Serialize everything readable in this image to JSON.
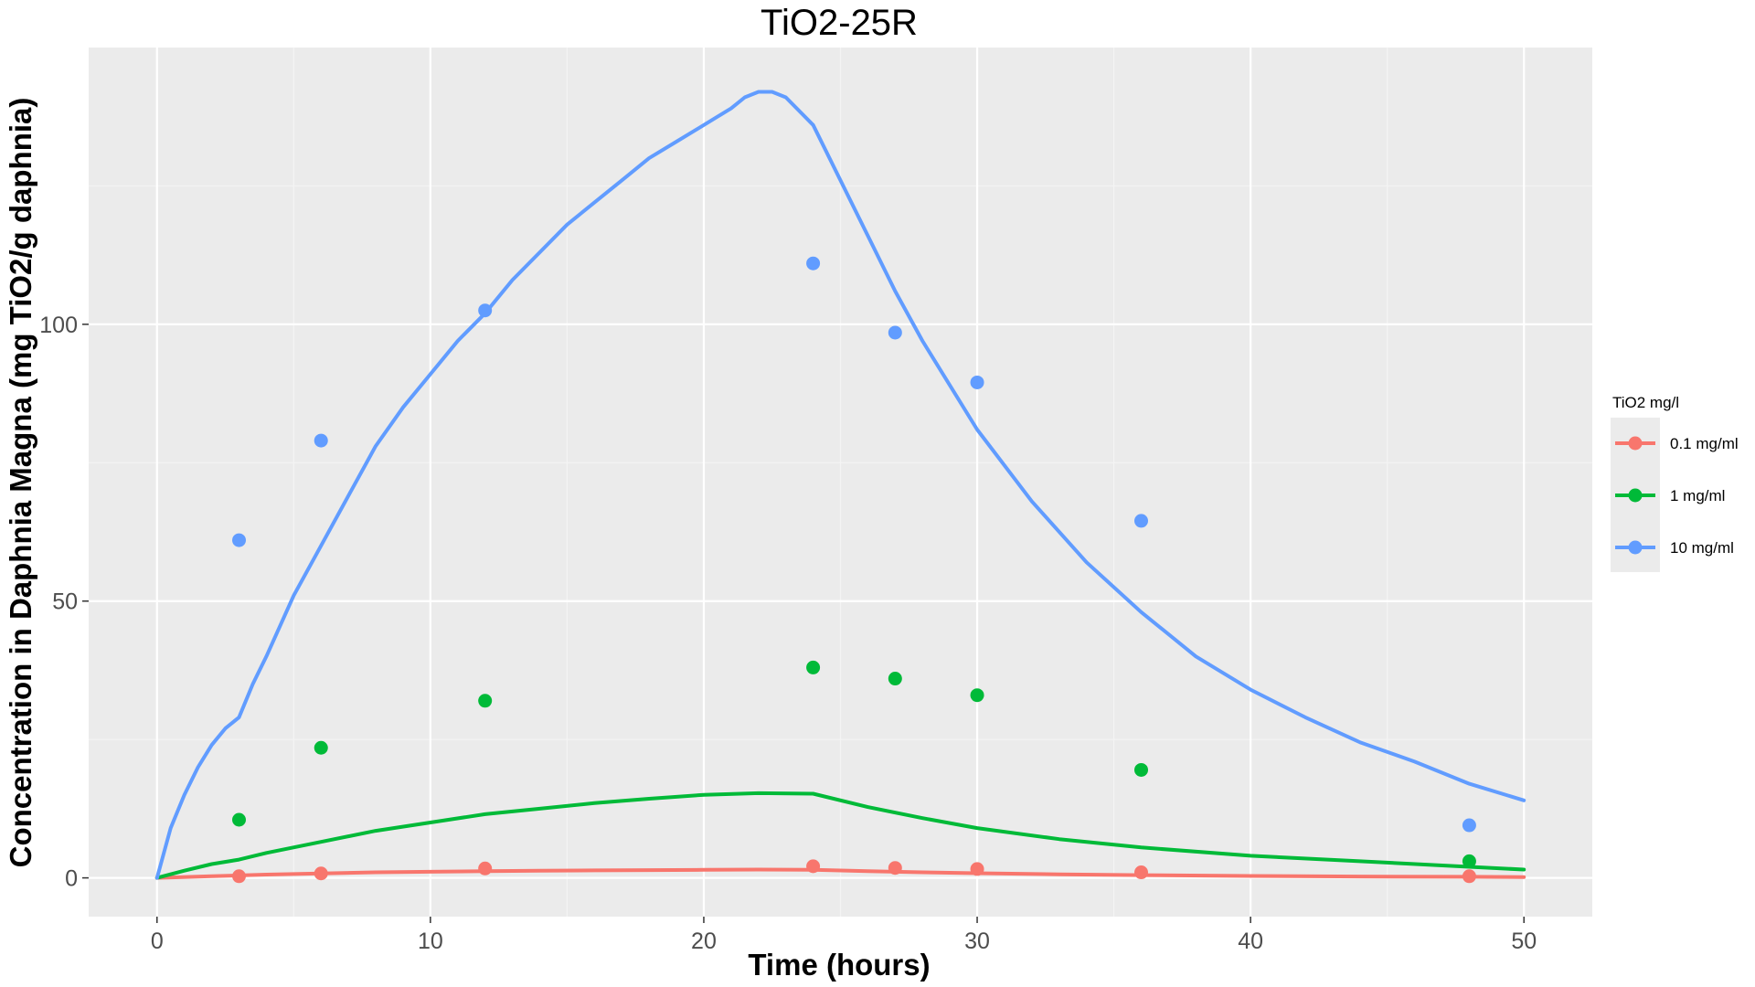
{
  "chart_data": {
    "type": "line",
    "title": "TiO2-25R",
    "xlabel": "Time (hours)",
    "ylabel": "Concentration in Daphnia Magna (mg TiO2/g daphnia)",
    "xlim": [
      -2.5,
      52.5
    ],
    "ylim": [
      -7,
      150
    ],
    "x_ticks": [
      0,
      10,
      20,
      30,
      40,
      50
    ],
    "y_ticks": [
      0,
      50,
      100
    ],
    "grid": true,
    "legend": {
      "title": "TiO2 mg/l",
      "placement": "right"
    },
    "series": [
      {
        "name": "0.1 mg/ml",
        "color": "#F8766D",
        "line": {
          "x": [
            0,
            2,
            4,
            6,
            8,
            10,
            12,
            14,
            16,
            18,
            20,
            22,
            24,
            26,
            28,
            30,
            33,
            36,
            40,
            44,
            48,
            50
          ],
          "y": [
            0,
            0.3,
            0.6,
            0.8,
            1.0,
            1.1,
            1.2,
            1.3,
            1.35,
            1.4,
            1.45,
            1.5,
            1.45,
            1.2,
            1.0,
            0.85,
            0.65,
            0.5,
            0.35,
            0.25,
            0.2,
            0.15
          ]
        },
        "points": {
          "x": [
            3,
            6,
            12,
            24,
            27,
            30,
            36,
            48
          ],
          "y": [
            0.3,
            0.8,
            1.7,
            2.1,
            1.8,
            1.6,
            1.0,
            0.3
          ]
        }
      },
      {
        "name": "1 mg/ml",
        "color": "#00BA38",
        "line": {
          "x": [
            0,
            1,
            2,
            3,
            4,
            6,
            8,
            10,
            12,
            14,
            16,
            18,
            20,
            22,
            24,
            26,
            28,
            30,
            33,
            36,
            40,
            44,
            48,
            50
          ],
          "y": [
            0,
            1.3,
            2.5,
            3.3,
            4.5,
            6.5,
            8.5,
            10.0,
            11.5,
            12.5,
            13.5,
            14.3,
            15.0,
            15.3,
            15.2,
            12.8,
            10.8,
            9.0,
            7.0,
            5.5,
            4.0,
            3.0,
            2.0,
            1.5
          ]
        },
        "points": {
          "x": [
            3,
            6,
            12,
            24,
            27,
            30,
            36,
            48
          ],
          "y": [
            10.5,
            23.5,
            32,
            38,
            36,
            33,
            19.5,
            3
          ]
        }
      },
      {
        "name": "10 mg/ml",
        "color": "#619CFF",
        "line": {
          "x": [
            0,
            0.5,
            1,
            1.5,
            2,
            2.5,
            3,
            3.5,
            4,
            5,
            6,
            7,
            8,
            9,
            10,
            11,
            12,
            13,
            14,
            15,
            16,
            17,
            18,
            19,
            20,
            20.5,
            21,
            21.5,
            22,
            22.5,
            23,
            24,
            25,
            26,
            27,
            28,
            30,
            32,
            34,
            36,
            38,
            40,
            42,
            44,
            46,
            48,
            50
          ],
          "y": [
            0,
            9,
            15,
            20,
            24,
            27,
            29,
            35,
            40,
            51,
            60,
            69,
            78,
            85,
            91,
            97,
            102,
            108,
            113,
            118,
            122,
            126,
            130,
            133,
            136,
            137.5,
            139,
            141,
            142,
            142,
            141,
            136,
            126,
            116,
            106,
            97,
            81,
            68,
            57,
            48,
            40,
            34,
            29,
            24.5,
            21,
            17,
            14
          ]
        },
        "points": {
          "x": [
            3,
            6,
            12,
            24,
            27,
            30,
            36,
            48
          ],
          "y": [
            61,
            79,
            102.5,
            111,
            98.5,
            89.5,
            64.5,
            9.5
          ]
        }
      }
    ]
  }
}
